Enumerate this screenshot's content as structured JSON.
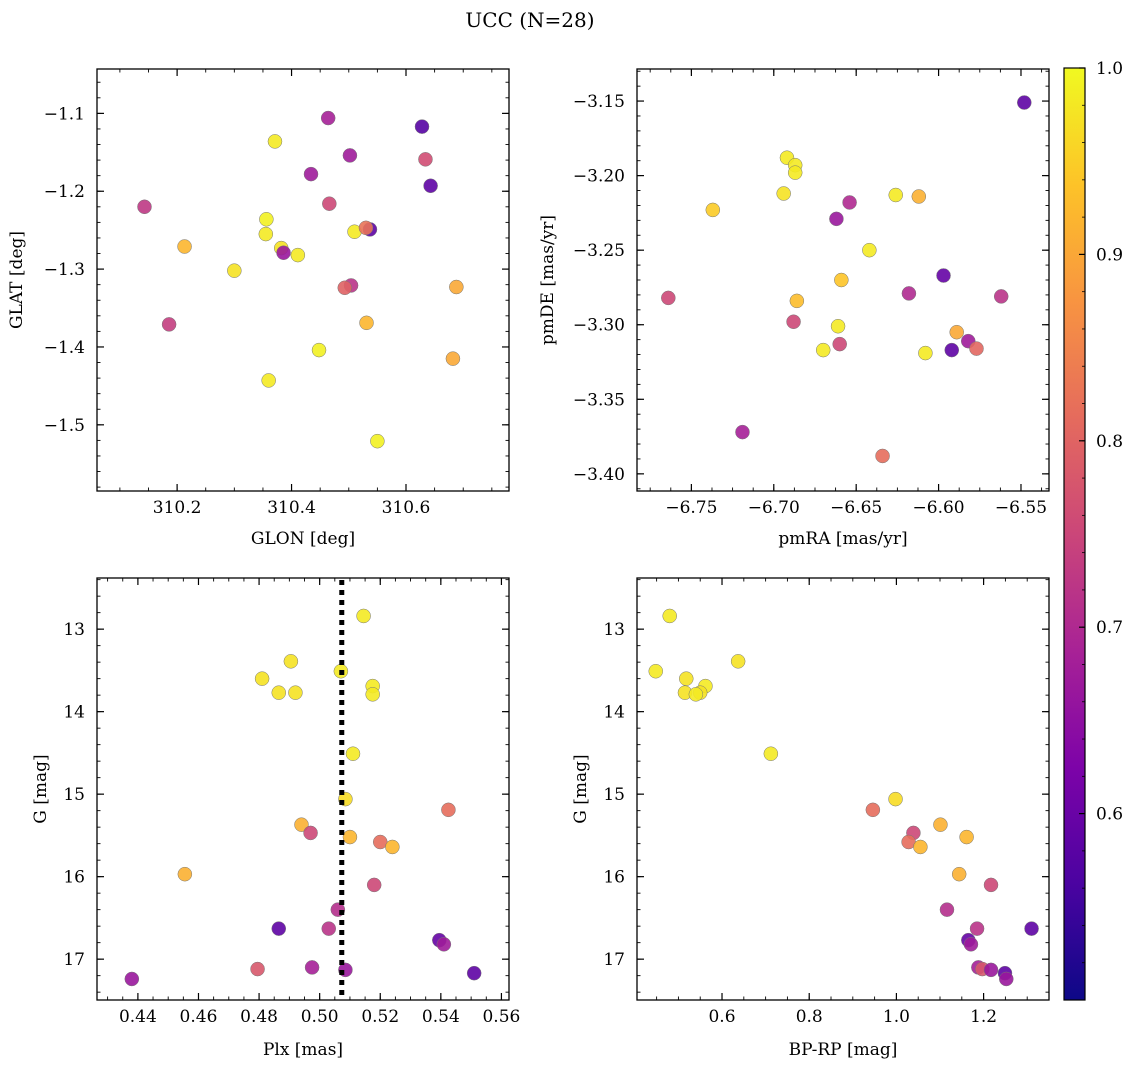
{
  "title": "UCC (N=28)",
  "colorbar": {
    "min": 0.5,
    "max": 1.0,
    "ticks": [
      0.6,
      0.7,
      0.8,
      0.9,
      1.0
    ],
    "tick_labels": [
      "0.6",
      "0.7",
      "0.8",
      "0.9",
      "1.0"
    ],
    "colormap": "plasma"
  },
  "chart_data": [
    {
      "type": "scatter",
      "xlabel": "GLON [deg]",
      "ylabel": "GLAT [deg]",
      "xlim": [
        310.06,
        310.78
      ],
      "ylim": [
        -1.585,
        -1.043
      ],
      "y_inverted": false,
      "xticks": [
        310.2,
        310.4,
        310.6
      ],
      "xtick_labels": [
        "310.2",
        "310.4",
        "310.6"
      ],
      "yticks": [
        -1.1,
        -1.2,
        -1.3,
        -1.4,
        -1.5
      ],
      "ytick_labels": [
        "−1.1",
        "−1.2",
        "−1.3",
        "−1.4",
        "−1.5"
      ],
      "points": [
        {
          "x": 310.464,
          "y": -1.106,
          "c": 0.64
        },
        {
          "x": 310.628,
          "y": -1.117,
          "c": 0.52
        },
        {
          "x": 310.371,
          "y": -1.136,
          "c": 0.98
        },
        {
          "x": 310.502,
          "y": -1.154,
          "c": 0.63
        },
        {
          "x": 310.634,
          "y": -1.159,
          "c": 0.73
        },
        {
          "x": 310.434,
          "y": -1.178,
          "c": 0.63
        },
        {
          "x": 310.643,
          "y": -1.193,
          "c": 0.53
        },
        {
          "x": 310.143,
          "y": -1.22,
          "c": 0.69
        },
        {
          "x": 310.466,
          "y": -1.216,
          "c": 0.72
        },
        {
          "x": 310.356,
          "y": -1.236,
          "c": 0.99
        },
        {
          "x": 310.355,
          "y": -1.255,
          "c": 0.98
        },
        {
          "x": 310.51,
          "y": -1.252,
          "c": 0.98
        },
        {
          "x": 310.537,
          "y": -1.249,
          "c": 0.53
        },
        {
          "x": 310.53,
          "y": -1.247,
          "c": 0.8
        },
        {
          "x": 310.213,
          "y": -1.271,
          "c": 0.91
        },
        {
          "x": 310.382,
          "y": -1.273,
          "c": 0.97
        },
        {
          "x": 310.386,
          "y": -1.279,
          "c": 0.62
        },
        {
          "x": 310.411,
          "y": -1.282,
          "c": 0.98
        },
        {
          "x": 310.3,
          "y": -1.302,
          "c": 0.97
        },
        {
          "x": 310.504,
          "y": -1.321,
          "c": 0.68
        },
        {
          "x": 310.493,
          "y": -1.324,
          "c": 0.77
        },
        {
          "x": 310.688,
          "y": -1.323,
          "c": 0.89
        },
        {
          "x": 310.186,
          "y": -1.371,
          "c": 0.7
        },
        {
          "x": 310.531,
          "y": -1.369,
          "c": 0.91
        },
        {
          "x": 310.448,
          "y": -1.404,
          "c": 0.99
        },
        {
          "x": 310.682,
          "y": -1.415,
          "c": 0.89
        },
        {
          "x": 310.36,
          "y": -1.443,
          "c": 0.98
        },
        {
          "x": 310.55,
          "y": -1.521,
          "c": 0.99
        }
      ]
    },
    {
      "type": "scatter",
      "xlabel": "pmRA [mas/yr]",
      "ylabel": "pmDE [mas/yr]",
      "xlim": [
        -6.783,
        -6.533
      ],
      "ylim": [
        -3.4115,
        -3.1285
      ],
      "y_inverted": false,
      "xticks": [
        -6.75,
        -6.7,
        -6.65,
        -6.6,
        -6.55
      ],
      "xtick_labels": [
        "−6.75",
        "−6.70",
        "−6.65",
        "−6.60",
        "−6.55"
      ],
      "yticks": [
        -3.15,
        -3.2,
        -3.25,
        -3.3,
        -3.35,
        -3.4
      ],
      "ytick_labels": [
        "−3.15",
        "−3.20",
        "−3.25",
        "−3.30",
        "−3.35",
        "−3.40"
      ],
      "points": [
        {
          "x": -6.548,
          "y": -3.151,
          "c": 0.53
        },
        {
          "x": -6.692,
          "y": -3.188,
          "c": 0.98
        },
        {
          "x": -6.687,
          "y": -3.193,
          "c": 0.98
        },
        {
          "x": -6.687,
          "y": -3.198,
          "c": 0.98
        },
        {
          "x": -6.694,
          "y": -3.212,
          "c": 0.97
        },
        {
          "x": -6.626,
          "y": -3.213,
          "c": 0.98
        },
        {
          "x": -6.612,
          "y": -3.214,
          "c": 0.9
        },
        {
          "x": -6.654,
          "y": -3.218,
          "c": 0.66
        },
        {
          "x": -6.737,
          "y": -3.223,
          "c": 0.94
        },
        {
          "x": -6.662,
          "y": -3.229,
          "c": 0.62
        },
        {
          "x": -6.642,
          "y": -3.25,
          "c": 0.98
        },
        {
          "x": -6.597,
          "y": -3.267,
          "c": 0.54
        },
        {
          "x": -6.659,
          "y": -3.27,
          "c": 0.93
        },
        {
          "x": -6.618,
          "y": -3.279,
          "c": 0.66
        },
        {
          "x": -6.562,
          "y": -3.281,
          "c": 0.68
        },
        {
          "x": -6.764,
          "y": -3.282,
          "c": 0.72
        },
        {
          "x": -6.686,
          "y": -3.284,
          "c": 0.92
        },
        {
          "x": -6.688,
          "y": -3.298,
          "c": 0.72
        },
        {
          "x": -6.661,
          "y": -3.301,
          "c": 0.98
        },
        {
          "x": -6.589,
          "y": -3.305,
          "c": 0.89
        },
        {
          "x": -6.582,
          "y": -3.311,
          "c": 0.63
        },
        {
          "x": -6.66,
          "y": -3.313,
          "c": 0.72
        },
        {
          "x": -6.577,
          "y": -3.316,
          "c": 0.78
        },
        {
          "x": -6.67,
          "y": -3.317,
          "c": 0.98
        },
        {
          "x": -6.592,
          "y": -3.317,
          "c": 0.53
        },
        {
          "x": -6.608,
          "y": -3.319,
          "c": 0.98
        },
        {
          "x": -6.719,
          "y": -3.372,
          "c": 0.64
        },
        {
          "x": -6.634,
          "y": -3.388,
          "c": 0.79
        }
      ]
    },
    {
      "type": "scatter",
      "xlabel": "Plx [mas]",
      "ylabel": "G [mag]",
      "xlim": [
        0.4265,
        0.5625
      ],
      "ylim": [
        17.495,
        12.38
      ],
      "y_inverted": true,
      "xticks": [
        0.44,
        0.46,
        0.48,
        0.5,
        0.52,
        0.54,
        0.56
      ],
      "xtick_labels": [
        "0.44",
        "0.46",
        "0.48",
        "0.50",
        "0.52",
        "0.54",
        "0.56"
      ],
      "yticks": [
        13,
        14,
        15,
        16,
        17
      ],
      "ytick_labels": [
        "13",
        "14",
        "15",
        "16",
        "17"
      ],
      "reference_line": {
        "x": 0.5073,
        "style": "dotted",
        "color": "#000000"
      },
      "points": [
        {
          "x": 0.5145,
          "y": 12.84,
          "c": 0.98
        },
        {
          "x": 0.4905,
          "y": 13.39,
          "c": 0.97
        },
        {
          "x": 0.507,
          "y": 13.51,
          "c": 0.98
        },
        {
          "x": 0.481,
          "y": 13.6,
          "c": 0.97
        },
        {
          "x": 0.5175,
          "y": 13.69,
          "c": 0.98
        },
        {
          "x": 0.4865,
          "y": 13.77,
          "c": 0.97
        },
        {
          "x": 0.492,
          "y": 13.77,
          "c": 0.97
        },
        {
          "x": 0.5175,
          "y": 13.79,
          "c": 0.98
        },
        {
          "x": 0.511,
          "y": 14.51,
          "c": 0.98
        },
        {
          "x": 0.5085,
          "y": 15.06,
          "c": 0.96
        },
        {
          "x": 0.5425,
          "y": 15.19,
          "c": 0.79
        },
        {
          "x": 0.494,
          "y": 15.37,
          "c": 0.9
        },
        {
          "x": 0.497,
          "y": 15.47,
          "c": 0.72
        },
        {
          "x": 0.51,
          "y": 15.52,
          "c": 0.91
        },
        {
          "x": 0.52,
          "y": 15.58,
          "c": 0.79
        },
        {
          "x": 0.524,
          "y": 15.64,
          "c": 0.91
        },
        {
          "x": 0.4555,
          "y": 15.97,
          "c": 0.9
        },
        {
          "x": 0.518,
          "y": 16.1,
          "c": 0.72
        },
        {
          "x": 0.506,
          "y": 16.4,
          "c": 0.67
        },
        {
          "x": 0.503,
          "y": 16.63,
          "c": 0.68
        },
        {
          "x": 0.4865,
          "y": 16.63,
          "c": 0.53
        },
        {
          "x": 0.5395,
          "y": 16.77,
          "c": 0.54
        },
        {
          "x": 0.541,
          "y": 16.82,
          "c": 0.63
        },
        {
          "x": 0.4975,
          "y": 17.1,
          "c": 0.64
        },
        {
          "x": 0.4795,
          "y": 17.12,
          "c": 0.75
        },
        {
          "x": 0.5085,
          "y": 17.13,
          "c": 0.62
        },
        {
          "x": 0.551,
          "y": 17.17,
          "c": 0.53
        },
        {
          "x": 0.438,
          "y": 17.24,
          "c": 0.62
        }
      ]
    },
    {
      "type": "scatter",
      "xlabel": "BP-RP [mag]",
      "ylabel": "G [mag]",
      "xlim": [
        0.405,
        1.35
      ],
      "ylim": [
        17.495,
        12.38
      ],
      "y_inverted": true,
      "xticks": [
        0.6,
        0.8,
        1.0,
        1.2
      ],
      "xtick_labels": [
        "0.6",
        "0.8",
        "1.0",
        "1.2"
      ],
      "yticks": [
        13,
        14,
        15,
        16,
        17
      ],
      "ytick_labels": [
        "13",
        "14",
        "15",
        "16",
        "17"
      ],
      "points": [
        {
          "x": 0.48,
          "y": 12.84,
          "c": 0.98
        },
        {
          "x": 0.637,
          "y": 13.39,
          "c": 0.97
        },
        {
          "x": 0.448,
          "y": 13.51,
          "c": 0.98
        },
        {
          "x": 0.518,
          "y": 13.6,
          "c": 0.97
        },
        {
          "x": 0.562,
          "y": 13.69,
          "c": 0.98
        },
        {
          "x": 0.515,
          "y": 13.77,
          "c": 0.97
        },
        {
          "x": 0.55,
          "y": 13.77,
          "c": 0.97
        },
        {
          "x": 0.54,
          "y": 13.79,
          "c": 0.98
        },
        {
          "x": 0.712,
          "y": 14.51,
          "c": 0.98
        },
        {
          "x": 0.998,
          "y": 15.06,
          "c": 0.96
        },
        {
          "x": 0.946,
          "y": 15.19,
          "c": 0.79
        },
        {
          "x": 1.101,
          "y": 15.37,
          "c": 0.9
        },
        {
          "x": 1.039,
          "y": 15.47,
          "c": 0.72
        },
        {
          "x": 1.161,
          "y": 15.52,
          "c": 0.91
        },
        {
          "x": 1.028,
          "y": 15.58,
          "c": 0.79
        },
        {
          "x": 1.055,
          "y": 15.64,
          "c": 0.91
        },
        {
          "x": 1.144,
          "y": 15.97,
          "c": 0.9
        },
        {
          "x": 1.217,
          "y": 16.1,
          "c": 0.72
        },
        {
          "x": 1.116,
          "y": 16.4,
          "c": 0.67
        },
        {
          "x": 1.185,
          "y": 16.63,
          "c": 0.68
        },
        {
          "x": 1.31,
          "y": 16.63,
          "c": 0.53
        },
        {
          "x": 1.165,
          "y": 16.77,
          "c": 0.54
        },
        {
          "x": 1.171,
          "y": 16.82,
          "c": 0.63
        },
        {
          "x": 1.188,
          "y": 17.1,
          "c": 0.64
        },
        {
          "x": 1.197,
          "y": 17.12,
          "c": 0.75
        },
        {
          "x": 1.217,
          "y": 17.13,
          "c": 0.62
        },
        {
          "x": 1.249,
          "y": 17.17,
          "c": 0.53
        },
        {
          "x": 1.252,
          "y": 17.24,
          "c": 0.62
        }
      ]
    }
  ]
}
